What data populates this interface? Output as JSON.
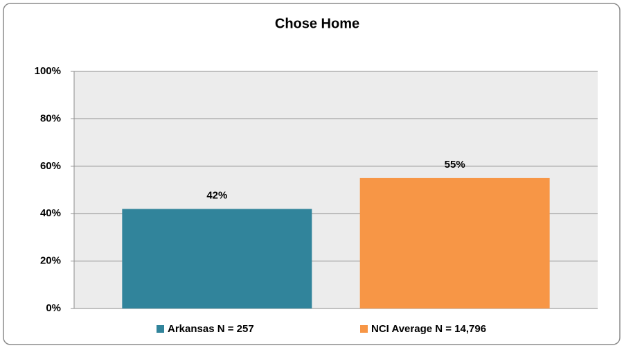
{
  "chart_data": {
    "type": "bar",
    "title": "Chose Home",
    "categories": [
      null
    ],
    "series": [
      {
        "name": "Arkansas N = 257",
        "color": "#31849b",
        "values": [
          42
        ],
        "value_labels": [
          "42%"
        ]
      },
      {
        "name": "NCI Average N = 14,796",
        "color": "#f79646",
        "values": [
          55
        ],
        "value_labels": [
          "55%"
        ]
      }
    ],
    "ylim": [
      0,
      100
    ],
    "yticks": [
      {
        "value": 0,
        "label": "0%"
      },
      {
        "value": 20,
        "label": "20%"
      },
      {
        "value": 40,
        "label": "40%"
      },
      {
        "value": 60,
        "label": "60%"
      },
      {
        "value": 80,
        "label": "80%"
      },
      {
        "value": 100,
        "label": "100%"
      }
    ],
    "grid": true,
    "legend": "bottom"
  }
}
